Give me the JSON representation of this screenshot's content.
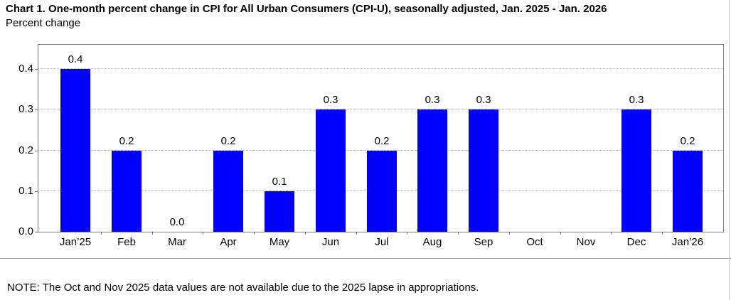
{
  "note": "NOTE: The Oct and Nov 2025 data values are not available due to the 2025 lapse in appropriations.",
  "chart_data": {
    "type": "bar",
    "title": "Chart 1. One-month percent change in CPI for All Urban Consumers (CPI-U), seasonally adjusted, Jan. 2025 - Jan. 2026",
    "xlabel": "",
    "ylabel": "Percent change",
    "categories": [
      "Jan’25",
      "Feb",
      "Mar",
      "Apr",
      "May",
      "Jun",
      "Jul",
      "Aug",
      "Sep",
      "Oct",
      "Nov",
      "Dec",
      "Jan’26"
    ],
    "values": [
      0.4,
      0.2,
      0.0,
      0.2,
      0.1,
      0.3,
      0.2,
      0.3,
      0.3,
      null,
      null,
      0.3,
      0.2
    ],
    "data_labels": [
      "0.4",
      "0.2",
      "0.0",
      "0.2",
      "0.1",
      "0.3",
      "0.2",
      "0.3",
      "0.3",
      "",
      "",
      "0.3",
      "0.2"
    ],
    "y_ticks": [
      "0.0",
      "0.1",
      "0.2",
      "0.3",
      "0.4"
    ],
    "ylim": [
      0,
      0.46
    ],
    "grid": "horizontal-dotted",
    "legend": "none",
    "bar_color": "#0000ff",
    "gridline_color": "#b8b8b8",
    "axis_border_color": "#7f7f7f",
    "text_color": "#000000"
  }
}
